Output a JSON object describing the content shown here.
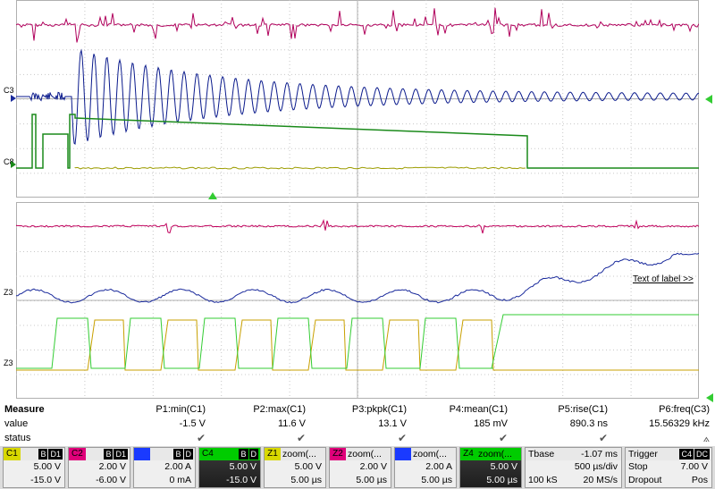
{
  "colors": {
    "c1": "#9c9c00",
    "c2": "#b0005c",
    "c3": "#0a1a8c",
    "c4": "#1a8a1a",
    "z1": "#c8a000",
    "z2": "#c0005c",
    "z3": "#1a2a9c",
    "z4": "#33cc33"
  },
  "channel_labels": {
    "c3": "C3",
    "c4_c1": "C8",
    "z3": "Z3",
    "z_lower": "Z3"
  },
  "grid_link": "Text of label >>",
  "measure": {
    "title": "Measure",
    "value_label": "value",
    "status_label": "status",
    "columns": [
      {
        "param": "P1:min(C1)",
        "value": "-1.5 V",
        "status": "✔"
      },
      {
        "param": "P2:max(C1)",
        "value": "11.6 V",
        "status": "✔"
      },
      {
        "param": "P3:pkpk(C1)",
        "value": "13.1 V",
        "status": "✔"
      },
      {
        "param": "P4:mean(C1)",
        "value": "185 mV",
        "status": "✔"
      },
      {
        "param": "P5:rise(C1)",
        "value": "890.3 ns",
        "status": "✔"
      },
      {
        "param": "P6:freq(C3)",
        "value": "15.56329 kHz",
        "status": "⟑"
      }
    ]
  },
  "descriptors": [
    {
      "tag": "C1",
      "flags": [
        "B",
        "D1"
      ],
      "l1": "5.00 V",
      "l2": "-15.0 V",
      "color": "#d8d800"
    },
    {
      "tag": "C2",
      "flags": [
        "B",
        "D1"
      ],
      "l1": "2.00 V",
      "l2": "-6.00 V",
      "color": "#e0007a"
    },
    {
      "tag": "",
      "flags": [
        "B",
        "D"
      ],
      "l1": "2.00 A",
      "l2": "0 mA",
      "color": "#1a3aff"
    },
    {
      "tag": "C4",
      "flags": [
        "B",
        "D"
      ],
      "l1": "5.00 V",
      "l2": "-15.0 V",
      "color": "#00cc00"
    },
    {
      "tag": "Z1",
      "title": "zoom(...",
      "l1": "5.00 V",
      "l2": "5.00 µs",
      "color": "#d8d800"
    },
    {
      "tag": "Z2",
      "title": "zoom(...",
      "l1": "2.00 V",
      "l2": "5.00 µs",
      "color": "#e0007a"
    },
    {
      "tag": "",
      "title": "zoom(...",
      "l1": "2.00 A",
      "l2": "5.00 µs",
      "color": "#1a3aff"
    },
    {
      "tag": "Z4",
      "title": "zoom(...",
      "l1": "5.00 V",
      "l2": "5.00 µs",
      "color": "#00cc00"
    }
  ],
  "timebase": {
    "title": "Tbase",
    "offset": "-1.07 ms",
    "div": "500 µs/div",
    "samples": "100 kS",
    "rate": "20 MS/s"
  },
  "trigger": {
    "title": "Trigger",
    "flags": [
      "C4",
      "DC"
    ],
    "mode": "Stop",
    "level": "7.00 V",
    "type": "Dropout",
    "slope": "Pos"
  }
}
